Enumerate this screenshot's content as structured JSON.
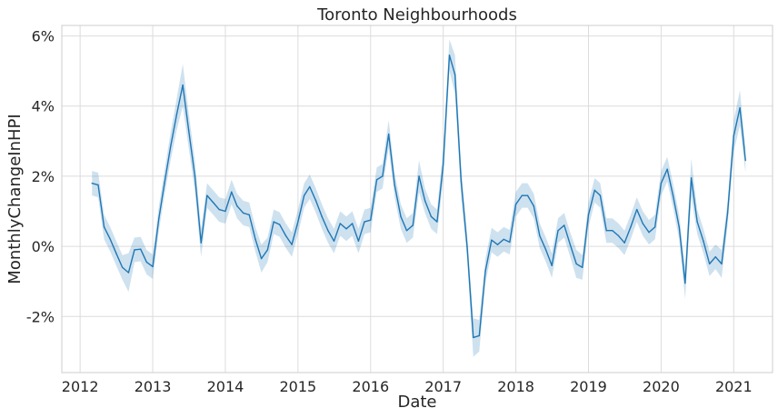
{
  "chart_data": {
    "type": "line",
    "title": "Toronto Neighbourhoods",
    "xlabel": "Date",
    "ylabel": "MonthlyChangeInHPI",
    "xlim": [
      "2011-10-01",
      "2021-07-15"
    ],
    "ylim": [
      -3.6,
      6.3
    ],
    "x_ticks": [
      "2012",
      "2013",
      "2014",
      "2015",
      "2016",
      "2017",
      "2018",
      "2019",
      "2020",
      "2021"
    ],
    "y_ticks": [
      -2,
      0,
      2,
      4,
      6
    ],
    "y_tick_labels": [
      "-2%",
      "0%",
      "2%",
      "4%",
      "6%"
    ],
    "grid": true,
    "colors": {
      "line": "#1f77b4",
      "band": "#1f77b4",
      "grid": "#dcdcdc",
      "background": "#ffffff"
    },
    "series": [
      {
        "start": "2012-03",
        "values": [
          1.8,
          1.75,
          0.55,
          0.2,
          -0.2,
          -0.6,
          -0.75,
          -0.1,
          -0.08,
          -0.45,
          -0.58,
          0.8,
          1.8,
          2.85,
          3.75,
          4.6,
          3.3,
          2.0,
          0.1,
          1.45,
          1.25,
          1.05,
          1.0,
          1.55,
          1.15,
          0.95,
          0.9,
          0.2,
          -0.35,
          -0.1,
          0.7,
          0.62,
          0.3,
          0.05,
          0.7,
          1.45,
          1.7,
          1.3,
          0.85,
          0.45,
          0.15,
          0.65,
          0.5,
          0.65,
          0.15,
          0.7,
          0.75,
          1.9,
          2.0,
          3.2,
          1.75,
          0.85,
          0.45,
          0.6,
          2.0,
          1.3,
          0.85,
          0.7,
          2.35,
          5.45,
          4.9,
          1.85,
          0.0,
          -2.6,
          -2.55,
          -0.7,
          0.18,
          0.05,
          0.2,
          0.12,
          1.2,
          1.45,
          1.45,
          1.15,
          0.3,
          -0.1,
          -0.55,
          0.45,
          0.6,
          0.05,
          -0.5,
          -0.6,
          0.9,
          1.6,
          1.45,
          0.45,
          0.45,
          0.3,
          0.1,
          0.55,
          1.05,
          0.65,
          0.4,
          0.55,
          1.8,
          2.2,
          1.45,
          0.55,
          -1.05,
          1.95,
          0.7,
          0.15,
          -0.5,
          -0.3,
          -0.5,
          0.95,
          3.15,
          3.95,
          2.45
        ],
        "ci": [
          0.35,
          0.35,
          0.35,
          0.35,
          0.35,
          0.35,
          0.55,
          0.35,
          0.35,
          0.35,
          0.35,
          0.35,
          0.35,
          0.4,
          0.45,
          0.6,
          0.5,
          0.45,
          0.4,
          0.35,
          0.35,
          0.35,
          0.35,
          0.35,
          0.35,
          0.35,
          0.35,
          0.35,
          0.4,
          0.35,
          0.35,
          0.35,
          0.35,
          0.35,
          0.35,
          0.35,
          0.35,
          0.35,
          0.35,
          0.35,
          0.35,
          0.35,
          0.35,
          0.35,
          0.35,
          0.35,
          0.35,
          0.35,
          0.35,
          0.4,
          0.35,
          0.35,
          0.35,
          0.35,
          0.45,
          0.35,
          0.35,
          0.35,
          0.45,
          0.45,
          0.55,
          0.45,
          0.35,
          0.55,
          0.45,
          0.35,
          0.35,
          0.35,
          0.35,
          0.35,
          0.35,
          0.35,
          0.35,
          0.35,
          0.35,
          0.35,
          0.35,
          0.35,
          0.35,
          0.35,
          0.4,
          0.35,
          0.35,
          0.35,
          0.35,
          0.35,
          0.35,
          0.35,
          0.35,
          0.35,
          0.35,
          0.35,
          0.35,
          0.35,
          0.35,
          0.35,
          0.35,
          0.35,
          0.45,
          0.55,
          0.35,
          0.35,
          0.35,
          0.35,
          0.4,
          0.35,
          0.45,
          0.5,
          0.35
        ]
      }
    ]
  }
}
